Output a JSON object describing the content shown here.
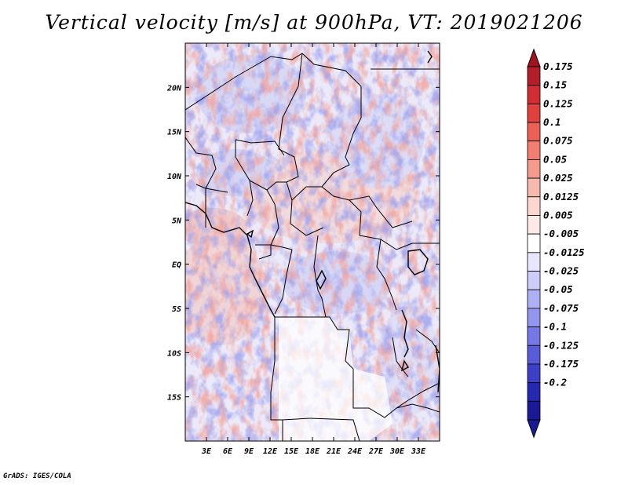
{
  "title": "Vertical velocity [m/s] at 900hPa, VT: 2019021206",
  "footer": "GrADS: IGES/COLA",
  "map": {
    "lon_range": [
      0,
      36
    ],
    "lat_range": [
      -20,
      25
    ],
    "lon_ticks": [
      "3E",
      "6E",
      "9E",
      "12E",
      "15E",
      "18E",
      "21E",
      "24E",
      "27E",
      "30E",
      "33E"
    ],
    "lon_tick_values": [
      3,
      6,
      9,
      12,
      15,
      18,
      21,
      24,
      27,
      30,
      33
    ],
    "lat_ticks": [
      "20N",
      "15N",
      "10N",
      "5N",
      "EQ",
      "5S",
      "10S",
      "15S"
    ],
    "lat_tick_values": [
      20,
      15,
      10,
      5,
      0,
      -5,
      -10,
      -15
    ]
  },
  "colorbar": {
    "labels": [
      "0.175",
      "0.15",
      "0.125",
      "0.1",
      "0.075",
      "0.05",
      "0.025",
      "0.0125",
      "0.005",
      "-0.005",
      "-0.0125",
      "-0.025",
      "-0.05",
      "-0.075",
      "-0.1",
      "-0.125",
      "-0.175",
      "-0.2"
    ],
    "colors": [
      "#b41e28",
      "#d22d32",
      "#e1413c",
      "#eb5f55",
      "#f07d6e",
      "#f59b8c",
      "#f8b9ad",
      "#fcd6cf",
      "#fdeae6",
      "#ffffff",
      "#e6e6fd",
      "#cccdfa",
      "#aeb0f5",
      "#9396ef",
      "#7678e6",
      "#585cd9",
      "#3c40c8",
      "#2528b0",
      "#1a1a96"
    ],
    "top_arrow_color": "#a01420",
    "bottom_arrow_color": "#1a1a96"
  }
}
